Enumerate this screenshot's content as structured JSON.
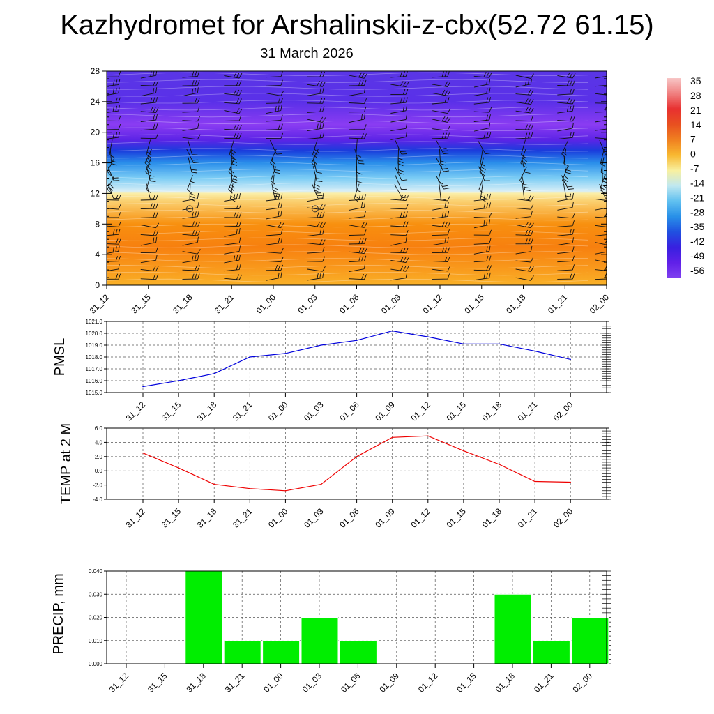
{
  "title": "Kazhydromet for Arshalinskii-z-cbx(52.72 61.15)",
  "subtitle": "31 March 2026",
  "time_labels": [
    "31_12",
    "31_15",
    "31_18",
    "31_21",
    "01_00",
    "01_03",
    "01_06",
    "01_09",
    "01_12",
    "01_15",
    "01_18",
    "01_21",
    "02_00"
  ],
  "colors": {
    "pmsl_line": "#0000dd",
    "temp_line": "#ee0000",
    "precip_bar": "#00ee00"
  },
  "chart_data": [
    {
      "type": "heatmap",
      "title": "Kazhydromet for Arshalinskii-z-cbx(52.72 61.15)",
      "subtitle": "31 March 2026",
      "ylabel": "",
      "ylim": [
        0,
        28
      ],
      "yticks": [
        0,
        4,
        8,
        12,
        16,
        20,
        24,
        28
      ],
      "categories": [
        "31_12",
        "31_15",
        "31_18",
        "31_21",
        "01_00",
        "01_03",
        "01_06",
        "01_09",
        "01_12",
        "01_15",
        "01_18",
        "01_21",
        "02_00"
      ],
      "colorbar": {
        "labels": [
          "35",
          "28",
          "21",
          "14",
          "7",
          "0",
          "-7",
          "-14",
          "-21",
          "-28",
          "-35",
          "-42",
          "-49",
          "-56"
        ],
        "colors": [
          "#f7c6c6",
          "#f08080",
          "#e83030",
          "#e85020",
          "#f08020",
          "#f8b830",
          "#f8f0a0",
          "#c0e8f0",
          "#60c0f0",
          "#2890e8",
          "#2050e0",
          "#3820e0",
          "#6020e8",
          "#8040f0"
        ]
      },
      "profile": [
        {
          "level": 0,
          "color": "#f9b128"
        },
        {
          "level": 2,
          "color": "#f99b1d"
        },
        {
          "level": 5,
          "color": "#f7800f"
        },
        {
          "level": 8,
          "color": "#f8900f"
        },
        {
          "level": 11,
          "color": "#fad070"
        },
        {
          "level": 12,
          "color": "#fbeea8"
        },
        {
          "level": 12.3,
          "color": "#d8eef6"
        },
        {
          "level": 14,
          "color": "#7ccdf5"
        },
        {
          "level": 16,
          "color": "#2a8eea"
        },
        {
          "level": 17.6,
          "color": "#1a3cdc"
        },
        {
          "level": 19,
          "color": "#5c24e6"
        },
        {
          "level": 21,
          "color": "#8a3cf2"
        },
        {
          "level": 24,
          "color": "#5a30e8"
        },
        {
          "level": 28,
          "color": "#5a36e6"
        }
      ]
    },
    {
      "type": "line",
      "ylabel": "PMSL",
      "ylim": [
        1015.0,
        1021.0
      ],
      "yticks": [
        "1015.0",
        "1016.0",
        "1017.0",
        "1018.0",
        "1019.0",
        "1020.0",
        "1021.0"
      ],
      "categories": [
        "31_12",
        "31_15",
        "31_18",
        "31_21",
        "01_00",
        "01_03",
        "01_06",
        "01_09",
        "01_12",
        "01_15",
        "01_18",
        "01_21",
        "02_00"
      ],
      "values": [
        1015.5,
        1016.0,
        1016.6,
        1018.0,
        1018.3,
        1019.0,
        1019.4,
        1020.2,
        1019.7,
        1019.1,
        1019.1,
        1018.5,
        1017.8
      ]
    },
    {
      "type": "line",
      "ylabel": "TEMP at 2 M",
      "ylim": [
        -4.0,
        6.0
      ],
      "yticks": [
        "-4.0",
        "-2.0",
        "0.0",
        "2.0",
        "4.0",
        "6.0"
      ],
      "categories": [
        "31_12",
        "31_15",
        "31_18",
        "31_21",
        "01_00",
        "01_03",
        "01_06",
        "01_09",
        "01_12",
        "01_15",
        "01_18",
        "01_21",
        "02_00"
      ],
      "values": [
        2.5,
        0.4,
        -1.9,
        -2.5,
        -2.8,
        -1.9,
        2.0,
        4.7,
        4.9,
        2.8,
        0.9,
        -1.5,
        -1.6
      ]
    },
    {
      "type": "bar",
      "ylabel": "PRECIP, mm",
      "ylim": [
        0,
        0.04
      ],
      "yticks": [
        "0.000",
        "0.010",
        "0.020",
        "0.030",
        "0.040"
      ],
      "categories": [
        "31_12",
        "31_15",
        "31_18",
        "31_21",
        "01_00",
        "01_03",
        "01_06",
        "01_09",
        "01_12",
        "01_15",
        "01_18",
        "01_21",
        "02_00"
      ],
      "values": [
        0,
        0,
        0.04,
        0.01,
        0.01,
        0.02,
        0.01,
        0,
        0,
        0,
        0.03,
        0.01,
        0.02
      ]
    }
  ]
}
